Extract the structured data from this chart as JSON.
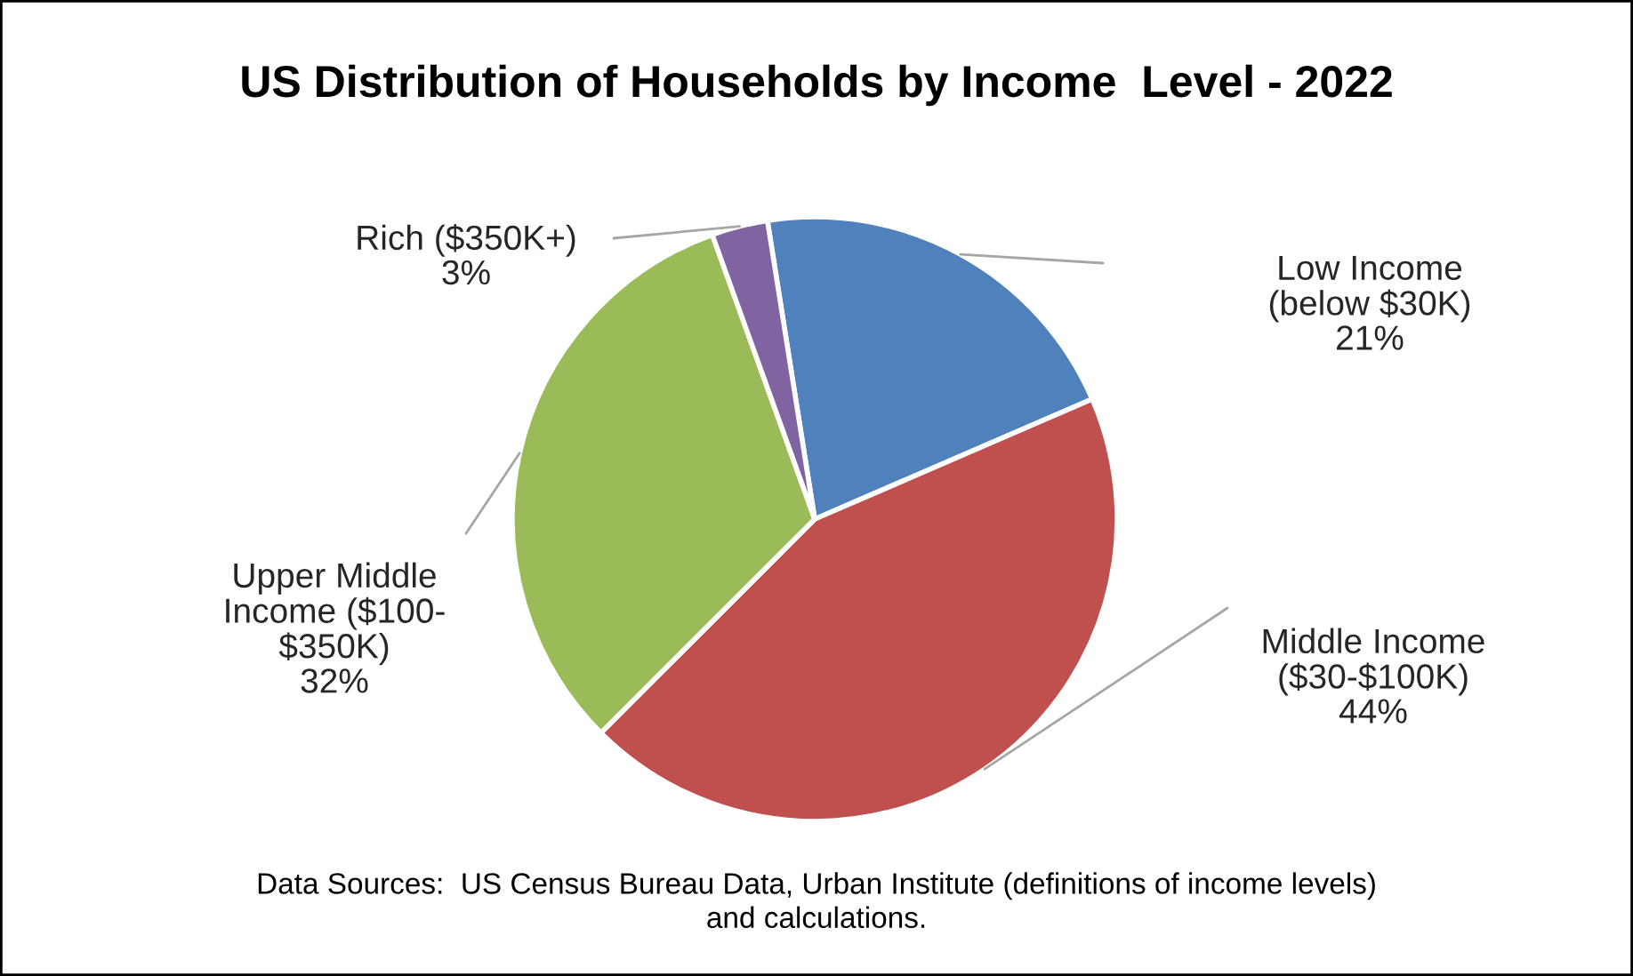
{
  "chart_data": {
    "type": "pie",
    "title": "US Distribution of Households by Income  Level - 2022",
    "categories": [
      "Low Income\n(below $30K)",
      "Middle Income\n($30-$100K)",
      "Upper Middle\nIncome ($100-\n$350K)",
      "Rich ($350K+)"
    ],
    "values": [
      21,
      44,
      32,
      3
    ],
    "colors": [
      "#4f81bd",
      "#c0504d",
      "#9bbb59",
      "#8064a2"
    ],
    "value_labels": [
      "21%",
      "44%",
      "32%",
      "3%"
    ],
    "legend": false,
    "annotations": [
      "Data Sources:  US Census Bureau Data, Urban Institute (definitions of income levels)\nand calculations."
    ]
  }
}
